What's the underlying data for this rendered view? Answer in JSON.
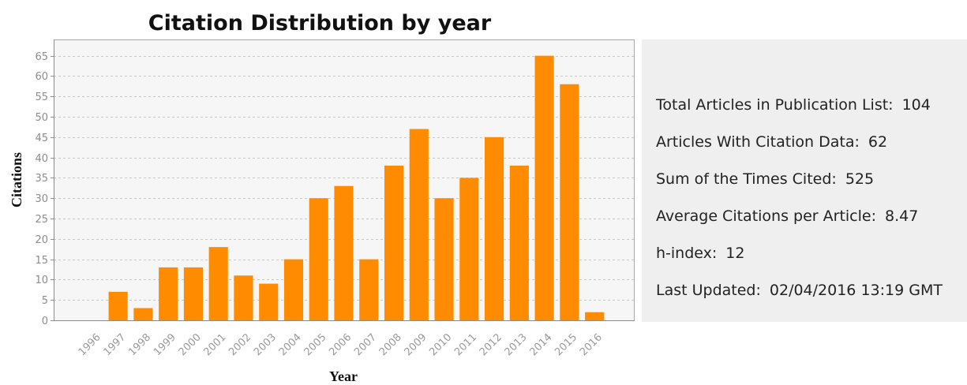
{
  "chart_data": {
    "type": "bar",
    "title": "Citation Distribution by year",
    "xlabel": "Year",
    "ylabel": "Citations",
    "categories": [
      "1996",
      "1997",
      "1998",
      "1999",
      "2000",
      "2001",
      "2002",
      "2003",
      "2004",
      "2005",
      "2006",
      "2007",
      "2008",
      "2009",
      "2010",
      "2011",
      "2012",
      "2013",
      "2014",
      "2015",
      "2016"
    ],
    "values": [
      0,
      7,
      3,
      13,
      13,
      18,
      11,
      9,
      15,
      30,
      33,
      15,
      38,
      47,
      30,
      35,
      45,
      38,
      65,
      58,
      2
    ],
    "ylim": [
      0,
      69
    ],
    "yticks": [
      0,
      5,
      10,
      15,
      20,
      25,
      30,
      35,
      40,
      45,
      50,
      55,
      60,
      65
    ],
    "grid": true,
    "legend": false,
    "bar_color": "#ff8c00"
  },
  "stats": {
    "items": [
      {
        "label": "Total Articles in Publication List:",
        "value": "104"
      },
      {
        "label": "Articles With Citation Data:",
        "value": "62"
      },
      {
        "label": "Sum of the Times Cited:",
        "value": "525"
      },
      {
        "label": "Average Citations per Article:",
        "value": "8.47"
      },
      {
        "label": "h-index:",
        "value": "12"
      },
      {
        "label": "Last Updated:",
        "value": "02/04/2016 13:19 GMT"
      }
    ]
  },
  "colors": {
    "panel_background": "#efefef",
    "plot_background": "#f6f6f6"
  }
}
